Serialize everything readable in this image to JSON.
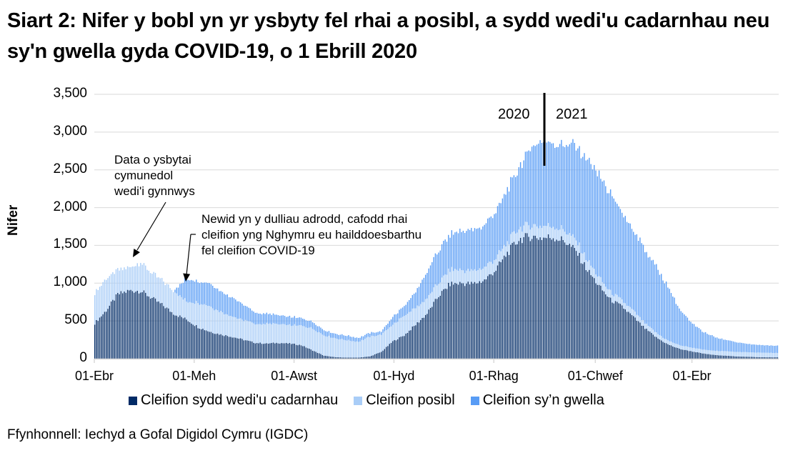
{
  "title": "Siart 2: Nifer y bobl yn yr ysbyty fel rhai a posibl, a sydd wedi'u cadarnhau neu sy'n gwella gyda COVID-19, o 1 Ebrill 2020",
  "source": "Ffynhonnell: Iechyd a Gofal Digidol Cymru (IGDC)",
  "colors": {
    "confirmed": "#002b66",
    "suspected": "#a9cdf7",
    "recovering": "#589cf5",
    "grid": "#d9d9d9",
    "axis": "#d9d9d9"
  },
  "chart_data": {
    "type": "bar",
    "stacked": true,
    "title": "Siart 2: Nifer y bobl yn yr ysbyty fel rhai a posibl, a sydd wedi'u cadarnhau neu sy'n gwella gyda COVID-19, o 1 Ebrill 2020",
    "xlabel": "",
    "ylabel": "Nifer",
    "ylim": [
      0,
      3500
    ],
    "yticks": [
      0,
      500,
      1000,
      1500,
      2000,
      2500,
      3000,
      3500
    ],
    "ytick_labels": [
      "0",
      "500",
      "1,000",
      "1,500",
      "2,000",
      "2,500",
      "3,000",
      "3,500"
    ],
    "grid": true,
    "legend_position": "bottom",
    "x_start": "2020-04-01",
    "x_days": 418,
    "xtick_labels": [
      {
        "label": "01-Ebr",
        "day": 0
      },
      {
        "label": "01-Meh",
        "day": 61
      },
      {
        "label": "01-Awst",
        "day": 122
      },
      {
        "label": "01-Hyd",
        "day": 183
      },
      {
        "label": "01-Rhag",
        "day": 244
      },
      {
        "label": "01-Chwef",
        "day": 306
      },
      {
        "label": "01-Ebr",
        "day": 365
      }
    ],
    "series_keyframes_note": "Values at sampled days; intermediate days interpolated. Recovering series starts 2020-05-18.",
    "days": [
      0,
      7,
      14,
      21,
      28,
      35,
      42,
      48,
      56,
      63,
      70,
      77,
      84,
      91,
      98,
      105,
      112,
      119,
      126,
      133,
      140,
      147,
      154,
      161,
      168,
      175,
      182,
      189,
      196,
      203,
      210,
      217,
      224,
      231,
      238,
      245,
      252,
      259,
      266,
      273,
      280,
      287,
      294,
      301,
      308,
      315,
      322,
      329,
      336,
      343,
      350,
      357,
      364,
      371,
      378,
      385,
      392,
      399,
      406,
      413,
      418
    ],
    "series": [
      {
        "name": "Cleifion sydd wedi'u cadarnhau",
        "color": "#002b66",
        "values": [
          470,
          640,
          850,
          900,
          900,
          800,
          700,
          600,
          520,
          420,
          360,
          320,
          290,
          250,
          210,
          200,
          210,
          200,
          180,
          110,
          40,
          20,
          15,
          15,
          30,
          90,
          230,
          310,
          450,
          600,
          830,
          990,
          1000,
          990,
          1040,
          1180,
          1400,
          1580,
          1620,
          1600,
          1610,
          1560,
          1420,
          1170,
          960,
          780,
          690,
          550,
          400,
          280,
          190,
          130,
          100,
          70,
          50,
          40,
          30,
          25,
          20,
          18,
          18
        ]
      },
      {
        "name": "Cleifion posibl",
        "color": "#a9cdf7",
        "values": [
          400,
          420,
          320,
          300,
          380,
          330,
          320,
          300,
          240,
          320,
          340,
          300,
          270,
          260,
          250,
          260,
          250,
          240,
          260,
          290,
          270,
          250,
          230,
          210,
          260,
          230,
          220,
          260,
          220,
          200,
          180,
          190,
          170,
          170,
          170,
          150,
          140,
          150,
          150,
          160,
          150,
          140,
          140,
          130,
          110,
          100,
          80,
          80,
          70,
          60,
          50,
          50,
          50,
          50,
          55,
          60,
          60,
          60,
          60,
          60,
          55
        ]
      },
      {
        "name": "Cleifion sy’n gwella",
        "color": "#589cf5",
        "values": [
          0,
          0,
          0,
          0,
          0,
          0,
          0,
          0,
          300,
          280,
          300,
          270,
          250,
          200,
          150,
          130,
          120,
          110,
          100,
          90,
          70,
          60,
          60,
          50,
          50,
          40,
          100,
          130,
          210,
          350,
          430,
          460,
          520,
          530,
          560,
          620,
          700,
          800,
          1030,
          1100,
          1090,
          1140,
          1240,
          1300,
          1350,
          1290,
          1160,
          1070,
          970,
          870,
          720,
          480,
          330,
          240,
          190,
          150,
          130,
          110,
          100,
          95,
          100
        ]
      }
    ],
    "annotations": [
      {
        "text": [
          "Data o ysbytai",
          "cymunedol",
          "wedi'i gynnwys"
        ],
        "points_to_day": 22
      },
      {
        "text": [
          "Newid yn y dulliau adrodd, cafodd rhai",
          "cleifion yng Nghymru eu hailddoesbarthu",
          "fel cleifion COVID-19"
        ],
        "points_to_day": 55
      },
      {
        "text": [
          "2020",
          "2021"
        ],
        "divider_day": 274
      }
    ]
  },
  "legend": [
    {
      "label": "Cleifion sydd wedi'u cadarnhau",
      "color": "#002b66"
    },
    {
      "label": "Cleifion posibl",
      "color": "#a9cdf7"
    },
    {
      "label": "Cleifion sy’n gwella",
      "color": "#589cf5"
    }
  ],
  "annotations": {
    "community": {
      "line1": "Data o ysbytai",
      "line2": "cymunedol",
      "line3": "wedi'i gynnwys"
    },
    "reclass": {
      "line1": "Newid yn y dulliau adrodd, cafodd rhai",
      "line2": "cleifion yng Nghymru eu hailddoesbarthu",
      "line3": "fel cleifion COVID-19"
    },
    "year_left": "2020",
    "year_right": "2021"
  }
}
